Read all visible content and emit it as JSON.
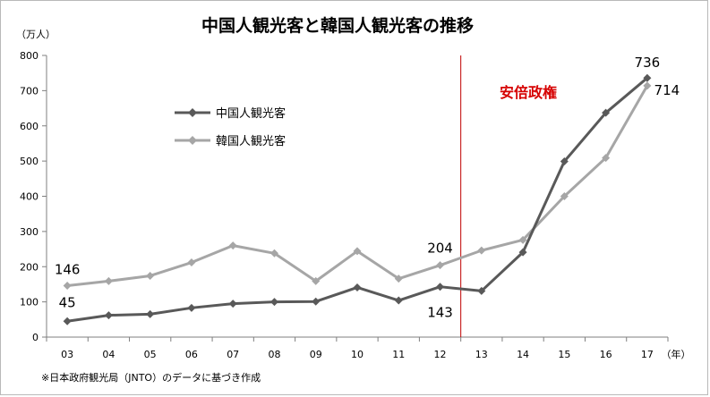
{
  "chart_data": {
    "type": "line",
    "title": "中国人観光客と韓国人観光客の推移",
    "ylabel": "（万人）",
    "xlabel": "（年）",
    "ylim": [
      0,
      800
    ],
    "yticks": [
      0,
      100,
      200,
      300,
      400,
      500,
      600,
      700,
      800
    ],
    "categories": [
      "03",
      "04",
      "05",
      "06",
      "07",
      "08",
      "09",
      "10",
      "11",
      "12",
      "13",
      "14",
      "15",
      "16",
      "17"
    ],
    "series": [
      {
        "name": "中国人観光客",
        "color": "#595959",
        "values": [
          45,
          62,
          65,
          83,
          95,
          100,
          101,
          141,
          104,
          143,
          131,
          241,
          499,
          637,
          736
        ]
      },
      {
        "name": "韓国人観光客",
        "color": "#a6a6a6",
        "values": [
          146,
          159,
          174,
          212,
          260,
          238,
          159,
          244,
          166,
          204,
          246,
          276,
          400,
          509,
          714
        ]
      }
    ],
    "annotations": [
      {
        "text": "146",
        "series": 1,
        "index": 0
      },
      {
        "text": "45",
        "series": 0,
        "index": 0
      },
      {
        "text": "204",
        "series": 1,
        "index": 9
      },
      {
        "text": "143",
        "series": 0,
        "index": 9
      },
      {
        "text": "736",
        "series": 0,
        "index": 14
      },
      {
        "text": "714",
        "series": 1,
        "index": 14
      }
    ],
    "marker_line": {
      "label": "安倍政権",
      "between": [
        "12",
        "13"
      ],
      "color": "#c00000"
    },
    "legend_placement": "top-left",
    "grid": false,
    "footnote": "※日本政府観光局（JNTO）のデータに基づき作成"
  }
}
